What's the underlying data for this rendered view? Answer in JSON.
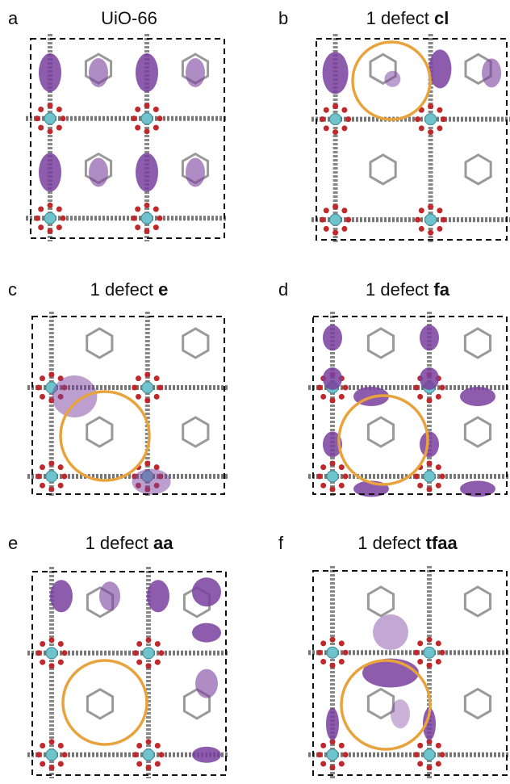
{
  "figure": {
    "panels": [
      {
        "letter": "a",
        "title": "UiO-66"
      },
      {
        "letter": "b",
        "title": "1 defect ",
        "title_bold": "cl"
      },
      {
        "letter": "c",
        "title": "1 defect ",
        "title_bold": "e"
      },
      {
        "letter": "d",
        "title": "1 defect ",
        "title_bold": "fa"
      },
      {
        "letter": "e",
        "title": "1 defect ",
        "title_bold": "aa"
      },
      {
        "letter": "f",
        "title": "1 defect ",
        "title_bold": "tfaa"
      }
    ]
  }
}
